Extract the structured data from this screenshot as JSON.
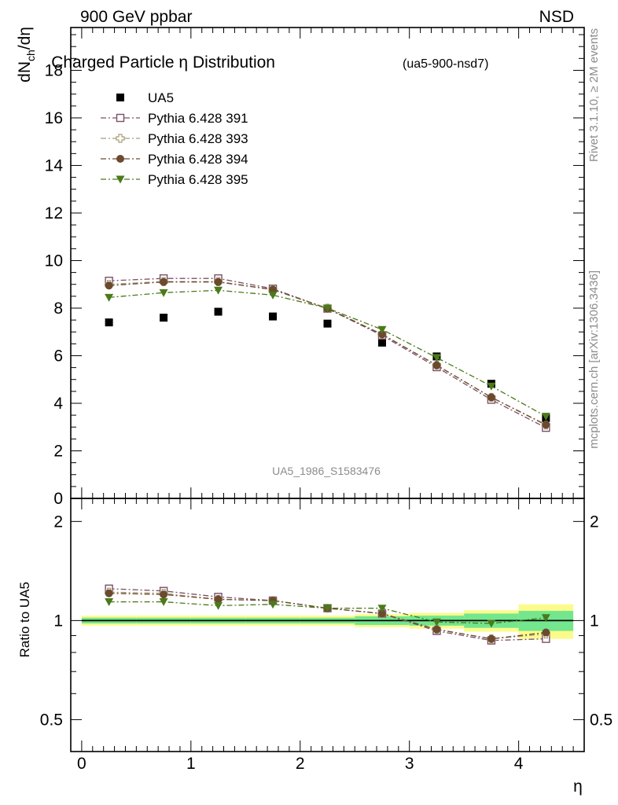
{
  "header": {
    "energy_label": "900 GeV ppbar",
    "process_label": "NSD"
  },
  "side_text": {
    "rivet": "Rivet 3.1.10, ≥ 2M events",
    "mcplots": "mcplots.cern.ch [arXiv:1306.3436]"
  },
  "chart_data": [
    {
      "type": "scatter",
      "panel": "main",
      "title": "Charged Particle η Distribution",
      "subtitle": "(ua5-900-nsd7)",
      "ylabel": "dN_ch/dη",
      "watermark": "UA5_1986_S1583476",
      "xlim": [
        -0.1,
        4.6
      ],
      "ylim": [
        0,
        19.8
      ],
      "yticks": [
        0,
        2,
        4,
        6,
        8,
        10,
        12,
        14,
        16,
        18
      ],
      "ytick_labels": [
        "0",
        "2",
        "4",
        "6",
        "8",
        "10",
        "12",
        "14",
        "16",
        "18"
      ],
      "legend_position": "top-left",
      "x": [
        0.25,
        0.75,
        1.25,
        1.75,
        2.25,
        2.75,
        3.25,
        3.75,
        4.25
      ],
      "series": [
        {
          "name": "UA5",
          "marker": "filled-square",
          "color": "#000000",
          "values": [
            7.4,
            7.6,
            7.85,
            7.65,
            7.35,
            6.55,
            5.97,
            4.82,
            3.38
          ]
        },
        {
          "name": "Pythia 6.428 391",
          "marker": "open-square",
          "color": "#7b5068",
          "values": [
            9.15,
            9.25,
            9.25,
            8.82,
            7.98,
            6.85,
            5.52,
            4.15,
            2.97
          ]
        },
        {
          "name": "Pythia 6.428 393",
          "marker": "open-cross",
          "color": "#a89e7a",
          "values": [
            9.0,
            9.12,
            9.12,
            8.78,
            8.0,
            6.9,
            5.6,
            4.25,
            3.08
          ]
        },
        {
          "name": "Pythia 6.428 394",
          "marker": "filled-circle",
          "color": "#6b4a2e",
          "values": [
            8.95,
            9.1,
            9.1,
            8.78,
            7.98,
            6.9,
            5.6,
            4.25,
            3.1
          ]
        },
        {
          "name": "Pythia 6.428 395",
          "marker": "filled-triangle-down",
          "color": "#4a7a1a",
          "values": [
            8.45,
            8.65,
            8.75,
            8.55,
            8.0,
            7.1,
            5.92,
            4.72,
            3.45
          ]
        }
      ]
    },
    {
      "type": "scatter",
      "panel": "ratio",
      "ylabel": "Ratio to UA5",
      "xlabel": "η",
      "yscale": "log",
      "xlim": [
        -0.1,
        4.6
      ],
      "ylim": [
        0.4,
        2.35
      ],
      "xticks": [
        0,
        1,
        2,
        3,
        4
      ],
      "xtick_labels": [
        "0",
        "1",
        "2",
        "3",
        "4"
      ],
      "yticks": [
        0.5,
        1,
        2
      ],
      "ytick_labels": [
        "0.5",
        "1",
        "2"
      ],
      "x": [
        0.25,
        0.75,
        1.25,
        1.75,
        2.25,
        2.75,
        3.25,
        3.75,
        4.25
      ],
      "uncertainty_bands": {
        "bins": [
          [
            0,
            0.5
          ],
          [
            0.5,
            1
          ],
          [
            1,
            1.5
          ],
          [
            1.5,
            2
          ],
          [
            2,
            2.5
          ],
          [
            2.5,
            3
          ],
          [
            3,
            3.5
          ],
          [
            3.5,
            4
          ],
          [
            4,
            4.5
          ]
        ],
        "stat_halfwidth": [
          0.02,
          0.02,
          0.02,
          0.02,
          0.02,
          0.03,
          0.035,
          0.05,
          0.07
        ],
        "total_halfwidth": [
          0.035,
          0.035,
          0.035,
          0.035,
          0.035,
          0.045,
          0.055,
          0.075,
          0.12
        ],
        "stat_color": "#73e68e",
        "total_color": "#fbfb8b"
      },
      "series": [
        {
          "name": "Pythia 6.428 391",
          "marker": "open-square",
          "color": "#7b5068",
          "values": [
            1.25,
            1.23,
            1.18,
            1.15,
            1.09,
            1.05,
            0.93,
            0.87,
            0.88
          ]
        },
        {
          "name": "Pythia 6.428 393",
          "marker": "open-cross",
          "color": "#a89e7a",
          "values": [
            1.22,
            1.21,
            1.16,
            1.15,
            1.09,
            1.05,
            0.94,
            0.88,
            0.91
          ]
        },
        {
          "name": "Pythia 6.428 394",
          "marker": "filled-circle",
          "color": "#6b4a2e",
          "values": [
            1.21,
            1.2,
            1.16,
            1.15,
            1.09,
            1.05,
            0.94,
            0.88,
            0.92
          ]
        },
        {
          "name": "Pythia 6.428 395",
          "marker": "filled-triangle-down",
          "color": "#4a7a1a",
          "values": [
            1.14,
            1.14,
            1.11,
            1.12,
            1.09,
            1.09,
            0.99,
            0.98,
            1.02
          ]
        }
      ]
    }
  ]
}
